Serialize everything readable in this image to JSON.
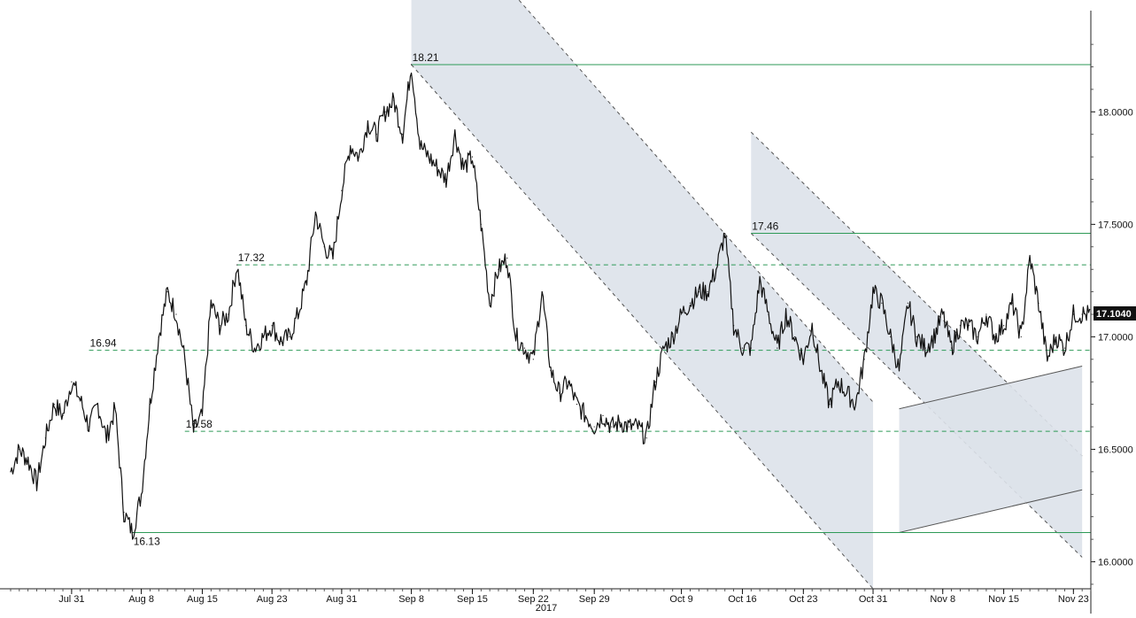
{
  "chart_data": {
    "type": "line",
    "title": "",
    "xlabel": "2017",
    "ylabel": "",
    "ylim": [
      15.88,
      18.45
    ],
    "grid": false,
    "colors": {
      "price": "#111111",
      "level_line": "#2e9a57",
      "channel_fill": "#dde2ea",
      "channel_edge": "#555555",
      "current_label_bg": "#111111",
      "current_label_fg": "#ffffff"
    },
    "x_ticks": [
      "Jul 31",
      "Aug 8",
      "Aug 15",
      "Aug 23",
      "Aug 31",
      "Sep 8",
      "Sep 15",
      "Sep 22",
      "Sep 29",
      "Oct 9",
      "Oct 16",
      "Oct 23",
      "Oct 31",
      "Nov 8",
      "Nov 15",
      "Nov 23"
    ],
    "y_ticks": [
      "16.0000",
      "16.5000",
      "17.0000",
      "17.5000",
      "18.0000"
    ],
    "current_value_label": "17.1040",
    "annotations": [
      {
        "label": "18.21",
        "value": 18.21,
        "style": "solid",
        "date": "2017-09-08"
      },
      {
        "label": "17.46",
        "value": 17.46,
        "style": "solid",
        "date": "2017-10-17"
      },
      {
        "label": "17.32",
        "value": 17.32,
        "style": "dashed",
        "date": "2017-08-19"
      },
      {
        "label": "16.94",
        "value": 16.94,
        "style": "dashed",
        "date": "2017-08-02"
      },
      {
        "label": "16.58",
        "value": 16.58,
        "style": "dashed",
        "date": "2017-08-13"
      },
      {
        "label": "16.13",
        "value": 16.13,
        "style": "solid",
        "date": "2017-08-07"
      }
    ],
    "series": [
      {
        "x": [
          "2017-07-24",
          "2017-07-25",
          "2017-07-26",
          "2017-07-27",
          "2017-07-28",
          "2017-07-29",
          "2017-07-30",
          "2017-07-31",
          "2017-08-01",
          "2017-08-02",
          "2017-08-03",
          "2017-08-04",
          "2017-08-05",
          "2017-08-06",
          "2017-08-07",
          "2017-08-08",
          "2017-08-09",
          "2017-08-10",
          "2017-08-11",
          "2017-08-12",
          "2017-08-13",
          "2017-08-14",
          "2017-08-15",
          "2017-08-16",
          "2017-08-17",
          "2017-08-18",
          "2017-08-19",
          "2017-08-20",
          "2017-08-21",
          "2017-08-22",
          "2017-08-23",
          "2017-08-24",
          "2017-08-25",
          "2017-08-26",
          "2017-08-27",
          "2017-08-28",
          "2017-08-29",
          "2017-08-30",
          "2017-08-31",
          "2017-09-01",
          "2017-09-02",
          "2017-09-03",
          "2017-09-04",
          "2017-09-05",
          "2017-09-06",
          "2017-09-07",
          "2017-09-08",
          "2017-09-09",
          "2017-09-10",
          "2017-09-11",
          "2017-09-12",
          "2017-09-13",
          "2017-09-14",
          "2017-09-15",
          "2017-09-16",
          "2017-09-17",
          "2017-09-18",
          "2017-09-19",
          "2017-09-20",
          "2017-09-21",
          "2017-09-22",
          "2017-09-23",
          "2017-09-24",
          "2017-09-25",
          "2017-09-26",
          "2017-09-27",
          "2017-09-28",
          "2017-09-29",
          "2017-09-30",
          "2017-10-01",
          "2017-10-02",
          "2017-10-03",
          "2017-10-04",
          "2017-10-05",
          "2017-10-06",
          "2017-10-07",
          "2017-10-08",
          "2017-10-09",
          "2017-10-10",
          "2017-10-11",
          "2017-10-12",
          "2017-10-13",
          "2017-10-14",
          "2017-10-15",
          "2017-10-16",
          "2017-10-17",
          "2017-10-18",
          "2017-10-19",
          "2017-10-20",
          "2017-10-21",
          "2017-10-22",
          "2017-10-23",
          "2017-10-24",
          "2017-10-25",
          "2017-10-26",
          "2017-10-27",
          "2017-10-28",
          "2017-10-29",
          "2017-10-30",
          "2017-10-31",
          "2017-11-01",
          "2017-11-02",
          "2017-11-03",
          "2017-11-04",
          "2017-11-05",
          "2017-11-06",
          "2017-11-07",
          "2017-11-08",
          "2017-11-09",
          "2017-11-10",
          "2017-11-11",
          "2017-11-12",
          "2017-11-13",
          "2017-11-14",
          "2017-11-15",
          "2017-11-16",
          "2017-11-17",
          "2017-11-18",
          "2017-11-19",
          "2017-11-20",
          "2017-11-21",
          "2017-11-22",
          "2017-11-23",
          "2017-11-24"
        ],
        "values": [
          16.4,
          16.5,
          16.45,
          16.35,
          16.55,
          16.7,
          16.65,
          16.8,
          16.72,
          16.6,
          16.7,
          16.55,
          16.68,
          16.22,
          16.13,
          16.3,
          16.7,
          17.0,
          17.2,
          17.1,
          16.9,
          16.58,
          16.65,
          17.15,
          17.05,
          17.1,
          17.32,
          17.05,
          16.95,
          17.0,
          17.05,
          16.98,
          17.0,
          17.1,
          17.25,
          17.55,
          17.4,
          17.35,
          17.65,
          17.85,
          17.8,
          17.95,
          17.9,
          18.0,
          18.05,
          17.9,
          18.21,
          17.85,
          17.8,
          17.75,
          17.7,
          17.9,
          17.75,
          17.8,
          17.5,
          17.15,
          17.3,
          17.35,
          17.0,
          16.95,
          16.9,
          17.2,
          16.85,
          16.75,
          16.8,
          16.7,
          16.65,
          16.6,
          16.65,
          16.6,
          16.62,
          16.6,
          16.6,
          16.55,
          16.8,
          16.95,
          17.0,
          17.1,
          17.15,
          17.2,
          17.2,
          17.3,
          17.46,
          17.05,
          16.95,
          16.95,
          17.25,
          17.1,
          16.95,
          17.1,
          17.0,
          16.9,
          17.05,
          16.85,
          16.7,
          16.8,
          16.75,
          16.7,
          16.9,
          17.2,
          17.15,
          17.0,
          16.85,
          17.15,
          17.0,
          16.95,
          17.0,
          17.1,
          16.95,
          17.05,
          17.05,
          17.0,
          17.1,
          17.0,
          17.05,
          17.15,
          17.0,
          17.35,
          17.15,
          16.9,
          17.0,
          16.95,
          17.1,
          17.1
        ]
      }
    ]
  }
}
